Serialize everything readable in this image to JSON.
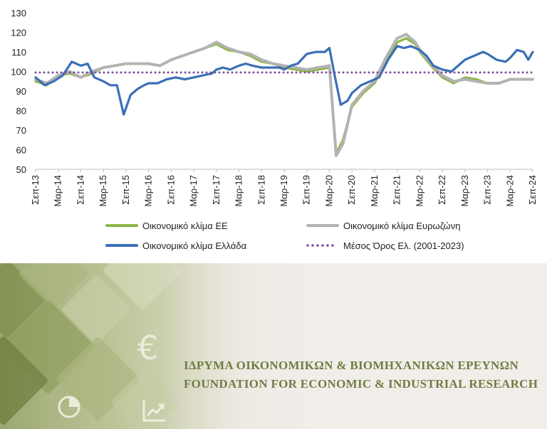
{
  "chart_data": {
    "type": "line",
    "title": "",
    "xlabel": "",
    "ylabel": "",
    "ylim": [
      50,
      130
    ],
    "y_ticks": [
      "50",
      "60",
      "70",
      "80",
      "90",
      "100",
      "110",
      "120",
      "130"
    ],
    "x_tick_labels": [
      "Σεπ-13",
      "Μαρ-14",
      "Σεπ-14",
      "Μαρ-15",
      "Σεπ-15",
      "Μαρ-16",
      "Σεπ-16",
      "Μαρ-17",
      "Σεπ-17",
      "Μαρ-18",
      "Σεπ-18",
      "Μαρ-19",
      "Σεπ-19",
      "Μαρ-20",
      "Σεπ-20",
      "Μαρ-21",
      "Σεπ-21",
      "Μαρ-22",
      "Σεπ-22",
      "Μαρ-23",
      "Σεπ-23",
      "Μαρ-24",
      "Σεπ-24"
    ],
    "x_index_note": "x values are half-year periods: 0 = Σεπ-13 ... 22 = Σεπ-24",
    "series": [
      {
        "name": "Οικονομικό κλίμα ΕΕ",
        "color": "#8db543",
        "style": "solid",
        "points": [
          [
            0,
            95
          ],
          [
            0.5,
            93
          ],
          [
            1,
            98
          ],
          [
            1.5,
            99
          ],
          [
            2,
            97
          ],
          [
            2.5,
            99
          ],
          [
            3,
            102
          ],
          [
            3.5,
            103
          ],
          [
            4,
            104
          ],
          [
            4.5,
            104
          ],
          [
            5,
            104
          ],
          [
            5.5,
            103
          ],
          [
            6,
            106
          ],
          [
            6.5,
            108
          ],
          [
            7,
            110
          ],
          [
            7.5,
            112
          ],
          [
            8,
            114
          ],
          [
            8.5,
            111
          ],
          [
            9,
            110
          ],
          [
            9.5,
            108
          ],
          [
            10,
            105
          ],
          [
            10.5,
            104
          ],
          [
            11,
            102
          ],
          [
            11.5,
            101
          ],
          [
            12,
            100
          ],
          [
            12.5,
            101
          ],
          [
            13,
            102
          ],
          [
            13.3,
            58
          ],
          [
            13.6,
            65
          ],
          [
            14,
            82
          ],
          [
            14.5,
            89
          ],
          [
            15,
            94
          ],
          [
            15.5,
            105
          ],
          [
            16,
            115
          ],
          [
            16.4,
            117
          ],
          [
            16.8,
            114
          ],
          [
            17,
            110
          ],
          [
            17.5,
            103
          ],
          [
            18,
            97
          ],
          [
            18.5,
            94
          ],
          [
            19,
            97
          ],
          [
            19.5,
            96
          ],
          [
            20,
            94
          ],
          [
            20.5,
            94
          ],
          [
            21,
            96
          ],
          [
            21.5,
            96
          ],
          [
            22,
            96
          ]
        ]
      },
      {
        "name": "Οικονομικό κλίμα Ευρωζώνη",
        "color": "#b3b3b3",
        "style": "solid",
        "points": [
          [
            0,
            96
          ],
          [
            0.5,
            94
          ],
          [
            1,
            98
          ],
          [
            1.5,
            100
          ],
          [
            2,
            97
          ],
          [
            2.5,
            100
          ],
          [
            3,
            102
          ],
          [
            3.5,
            103
          ],
          [
            4,
            104
          ],
          [
            4.5,
            104
          ],
          [
            5,
            104
          ],
          [
            5.5,
            103
          ],
          [
            6,
            106
          ],
          [
            6.5,
            108
          ],
          [
            7,
            110
          ],
          [
            7.5,
            112
          ],
          [
            8,
            115
          ],
          [
            8.5,
            112
          ],
          [
            9,
            110
          ],
          [
            9.5,
            109
          ],
          [
            10,
            106
          ],
          [
            10.5,
            104
          ],
          [
            11,
            103
          ],
          [
            11.5,
            102
          ],
          [
            12,
            101
          ],
          [
            12.5,
            102
          ],
          [
            13,
            103
          ],
          [
            13.3,
            57
          ],
          [
            13.6,
            63
          ],
          [
            14,
            83
          ],
          [
            14.5,
            90
          ],
          [
            15,
            95
          ],
          [
            15.5,
            107
          ],
          [
            16,
            117
          ],
          [
            16.4,
            119
          ],
          [
            16.8,
            115
          ],
          [
            17,
            111
          ],
          [
            17.5,
            104
          ],
          [
            18,
            98
          ],
          [
            18.5,
            95
          ],
          [
            19,
            96
          ],
          [
            19.5,
            95
          ],
          [
            20,
            94
          ],
          [
            20.5,
            94
          ],
          [
            21,
            96
          ],
          [
            21.5,
            96
          ],
          [
            22,
            96
          ]
        ]
      },
      {
        "name": "Οικονομικό κλίμα Ελλάδα",
        "color": "#3a6fb7",
        "style": "solid",
        "points": [
          [
            0,
            97
          ],
          [
            0.4,
            93
          ],
          [
            0.8,
            95
          ],
          [
            1.2,
            98
          ],
          [
            1.6,
            105
          ],
          [
            2,
            103
          ],
          [
            2.3,
            104
          ],
          [
            2.6,
            97
          ],
          [
            3,
            95
          ],
          [
            3.3,
            93
          ],
          [
            3.6,
            93
          ],
          [
            3.9,
            78
          ],
          [
            4.2,
            88
          ],
          [
            4.5,
            91
          ],
          [
            4.8,
            93
          ],
          [
            5,
            94
          ],
          [
            5.4,
            94
          ],
          [
            5.8,
            96
          ],
          [
            6.2,
            97
          ],
          [
            6.6,
            96
          ],
          [
            7,
            97
          ],
          [
            7.4,
            98
          ],
          [
            7.8,
            99
          ],
          [
            8,
            101
          ],
          [
            8.3,
            102
          ],
          [
            8.6,
            101
          ],
          [
            9,
            103
          ],
          [
            9.3,
            104
          ],
          [
            9.6,
            103
          ],
          [
            10,
            102
          ],
          [
            10.4,
            102
          ],
          [
            10.8,
            102
          ],
          [
            11,
            101
          ],
          [
            11.3,
            103
          ],
          [
            11.6,
            104
          ],
          [
            12,
            109
          ],
          [
            12.4,
            110
          ],
          [
            12.8,
            110
          ],
          [
            13,
            112
          ],
          [
            13.2,
            100
          ],
          [
            13.5,
            83
          ],
          [
            13.8,
            85
          ],
          [
            14,
            89
          ],
          [
            14.4,
            93
          ],
          [
            14.8,
            95
          ],
          [
            15.2,
            97
          ],
          [
            15.6,
            106
          ],
          [
            16,
            113
          ],
          [
            16.3,
            112
          ],
          [
            16.6,
            113
          ],
          [
            17,
            111
          ],
          [
            17.3,
            108
          ],
          [
            17.6,
            103
          ],
          [
            18,
            101
          ],
          [
            18.4,
            100
          ],
          [
            18.8,
            104
          ],
          [
            19,
            106
          ],
          [
            19.4,
            108
          ],
          [
            19.8,
            110
          ],
          [
            20,
            109
          ],
          [
            20.4,
            106
          ],
          [
            20.8,
            105
          ],
          [
            21,
            107
          ],
          [
            21.3,
            111
          ],
          [
            21.6,
            110
          ],
          [
            21.8,
            106
          ],
          [
            22,
            110
          ]
        ]
      },
      {
        "name": "Μέσος Όρος Ελ. (2001-2023)",
        "color": "#7a4ea0",
        "style": "dotted",
        "points": [
          [
            0,
            99.5
          ],
          [
            22,
            99.5
          ]
        ]
      }
    ],
    "legend_placement": "bottom"
  },
  "legend": {
    "eu": "Οικονομικό κλίμα ΕΕ",
    "eurozone": "Οικονομικό κλίμα Ευρωζώνη",
    "greece": "Οικονομικό κλίμα Ελλάδα",
    "average": "Μέσος Όρος Ελ. (2001-2023)"
  },
  "banner": {
    "org_greek": "ΙΔΡΥΜΑ ΟΙΚΟΝΟΜΙΚΩΝ & ΒΙΟΜΗΧΑΝΙΚΩΝ ΕΡΕΥΝΩΝ",
    "org_english": "FOUNDATION FOR ECONOMIC & INDUSTRIAL RESEARCH",
    "euro_symbol": "€",
    "icons": [
      "euro-icon",
      "pie-chart-icon",
      "growth-chart-icon"
    ]
  }
}
